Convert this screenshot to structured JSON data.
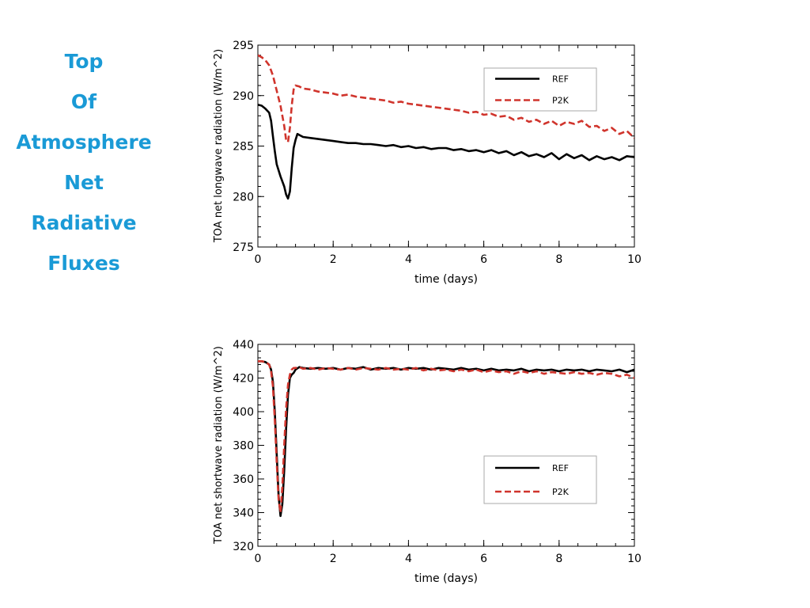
{
  "slide": {
    "title_lines": [
      "Top",
      "Of",
      "Atmosphere",
      "Net",
      "Radiative",
      "Fluxes"
    ],
    "title_color": "#1a9ad6"
  },
  "colors": {
    "ref": "#000000",
    "p2k": "#d0342c",
    "legend_border": "#aaaaaa"
  },
  "chart_data": [
    {
      "type": "line",
      "title": "",
      "xlabel": "time (days)",
      "ylabel": "TOA net longwave radiation   (W/m^2)",
      "xlim": [
        0,
        10
      ],
      "ylim": [
        275,
        295
      ],
      "xticks": [
        0,
        2,
        4,
        6,
        8,
        10
      ],
      "yticks": [
        275,
        280,
        285,
        290,
        295
      ],
      "grid": false,
      "legend_placement": "top-right",
      "series": [
        {
          "name": "REF",
          "style": "solid",
          "x": [
            0,
            0.1,
            0.2,
            0.3,
            0.35,
            0.4,
            0.45,
            0.5,
            0.6,
            0.7,
            0.75,
            0.8,
            0.85,
            0.9,
            0.95,
            1.0,
            1.05,
            1.1,
            1.2,
            1.4,
            1.6,
            1.8,
            2.0,
            2.2,
            2.4,
            2.6,
            2.8,
            3.0,
            3.2,
            3.4,
            3.6,
            3.8,
            4.0,
            4.2,
            4.4,
            4.6,
            4.8,
            5.0,
            5.2,
            5.4,
            5.6,
            5.8,
            6.0,
            6.2,
            6.4,
            6.6,
            6.8,
            7.0,
            7.2,
            7.4,
            7.6,
            7.8,
            8.0,
            8.2,
            8.4,
            8.6,
            8.8,
            9.0,
            9.2,
            9.4,
            9.6,
            9.8,
            10.0
          ],
          "values": [
            289.1,
            289.0,
            288.7,
            288.3,
            287.5,
            286.0,
            284.5,
            283.2,
            282.0,
            281.0,
            280.2,
            279.8,
            280.5,
            282.8,
            284.8,
            285.6,
            286.2,
            286.1,
            285.9,
            285.8,
            285.7,
            285.6,
            285.5,
            285.4,
            285.3,
            285.3,
            285.2,
            285.2,
            285.1,
            285.0,
            285.1,
            284.9,
            285.0,
            284.8,
            284.9,
            284.7,
            284.8,
            284.8,
            284.6,
            284.7,
            284.5,
            284.6,
            284.4,
            284.6,
            284.3,
            284.5,
            284.1,
            284.4,
            284.0,
            284.2,
            283.9,
            284.3,
            283.7,
            284.2,
            283.8,
            284.1,
            283.6,
            284.0,
            283.7,
            283.9,
            283.6,
            284.0,
            283.9
          ]
        },
        {
          "name": "P2K",
          "style": "dashed",
          "x": [
            0,
            0.1,
            0.2,
            0.3,
            0.4,
            0.5,
            0.6,
            0.7,
            0.75,
            0.8,
            0.85,
            0.9,
            0.95,
            1.0,
            1.1,
            1.2,
            1.4,
            1.6,
            1.8,
            2.0,
            2.2,
            2.4,
            2.6,
            2.8,
            3.0,
            3.2,
            3.4,
            3.6,
            3.8,
            4.0,
            4.2,
            4.4,
            4.6,
            4.8,
            5.0,
            5.2,
            5.4,
            5.6,
            5.8,
            6.0,
            6.2,
            6.4,
            6.6,
            6.8,
            7.0,
            7.2,
            7.4,
            7.6,
            7.8,
            8.0,
            8.2,
            8.4,
            8.6,
            8.8,
            9.0,
            9.2,
            9.4,
            9.6,
            9.8,
            10.0
          ],
          "values": [
            294.0,
            293.8,
            293.5,
            293.0,
            292.0,
            290.5,
            289.0,
            287.0,
            285.6,
            285.4,
            286.8,
            289.0,
            290.6,
            291.0,
            290.9,
            290.7,
            290.6,
            290.4,
            290.3,
            290.2,
            290.0,
            290.1,
            289.9,
            289.8,
            289.7,
            289.6,
            289.5,
            289.3,
            289.4,
            289.2,
            289.1,
            289.0,
            288.9,
            288.8,
            288.7,
            288.6,
            288.5,
            288.3,
            288.4,
            288.1,
            288.2,
            287.9,
            288.0,
            287.6,
            287.8,
            287.4,
            287.6,
            287.2,
            287.5,
            287.0,
            287.4,
            287.2,
            287.5,
            286.9,
            287.0,
            286.5,
            286.8,
            286.2,
            286.5,
            285.8
          ]
        }
      ]
    },
    {
      "type": "line",
      "title": "",
      "xlabel": "time (days)",
      "ylabel": "TOA net shortwave radiation   (W/m^2)",
      "xlim": [
        0,
        10
      ],
      "ylim": [
        320,
        440
      ],
      "xticks": [
        0,
        2,
        4,
        6,
        8,
        10
      ],
      "yticks": [
        320,
        340,
        360,
        380,
        400,
        420,
        440
      ],
      "grid": false,
      "legend_placement": "lower-right",
      "series": [
        {
          "name": "REF",
          "style": "solid",
          "x": [
            0,
            0.1,
            0.2,
            0.3,
            0.35,
            0.4,
            0.45,
            0.5,
            0.55,
            0.6,
            0.65,
            0.7,
            0.75,
            0.8,
            0.85,
            0.9,
            0.95,
            1.0,
            1.1,
            1.2,
            1.4,
            1.6,
            1.8,
            2.0,
            2.2,
            2.4,
            2.6,
            2.8,
            3.0,
            3.2,
            3.4,
            3.6,
            3.8,
            4.0,
            4.2,
            4.4,
            4.6,
            4.8,
            5.0,
            5.2,
            5.4,
            5.6,
            5.8,
            6.0,
            6.2,
            6.4,
            6.6,
            6.8,
            7.0,
            7.2,
            7.4,
            7.6,
            7.8,
            8.0,
            8.2,
            8.4,
            8.6,
            8.8,
            9.0,
            9.2,
            9.4,
            9.6,
            9.8,
            10.0
          ],
          "values": [
            430,
            430,
            429.5,
            428,
            425,
            418,
            400,
            375,
            350,
            338,
            345,
            365,
            390,
            410,
            420,
            422,
            423,
            425,
            426.5,
            426,
            425.5,
            426,
            425.5,
            426,
            425,
            426,
            425.5,
            426.5,
            425,
            426,
            425.5,
            426,
            425,
            426,
            425.5,
            426,
            425,
            426,
            425.5,
            425,
            426,
            425,
            425.5,
            424.5,
            425.5,
            424.5,
            425,
            424.5,
            425.5,
            424,
            425,
            424.5,
            425,
            424,
            425,
            424.5,
            425,
            424,
            425,
            424.5,
            424,
            425,
            423.5,
            425
          ]
        },
        {
          "name": "P2K",
          "style": "dashed",
          "x": [
            0,
            0.1,
            0.2,
            0.3,
            0.35,
            0.4,
            0.45,
            0.5,
            0.55,
            0.6,
            0.65,
            0.7,
            0.75,
            0.8,
            0.85,
            0.9,
            0.95,
            1.0,
            1.1,
            1.2,
            1.4,
            1.6,
            1.8,
            2.0,
            2.2,
            2.4,
            2.6,
            2.8,
            3.0,
            3.2,
            3.4,
            3.6,
            3.8,
            4.0,
            4.2,
            4.4,
            4.6,
            4.8,
            5.0,
            5.2,
            5.4,
            5.6,
            5.8,
            6.0,
            6.2,
            6.4,
            6.6,
            6.8,
            7.0,
            7.2,
            7.4,
            7.6,
            7.8,
            8.0,
            8.2,
            8.4,
            8.6,
            8.8,
            9.0,
            9.2,
            9.4,
            9.6,
            9.8,
            10.0
          ],
          "values": [
            430,
            430,
            429.5,
            428,
            424,
            415,
            395,
            370,
            348,
            340,
            355,
            380,
            402,
            416,
            422,
            425,
            426,
            426,
            426.5,
            425.5,
            426,
            425,
            426,
            425.5,
            425,
            426,
            425,
            426,
            425.5,
            425,
            426,
            425,
            425.5,
            425,
            426,
            424.5,
            425.5,
            424.5,
            425,
            424,
            425,
            424,
            425,
            423.5,
            424.5,
            423.5,
            424,
            422.5,
            424,
            423,
            424,
            422.5,
            423.5,
            423,
            422.5,
            423.5,
            422.5,
            423,
            422,
            423,
            422.5,
            421,
            422,
            420
          ]
        }
      ]
    }
  ]
}
